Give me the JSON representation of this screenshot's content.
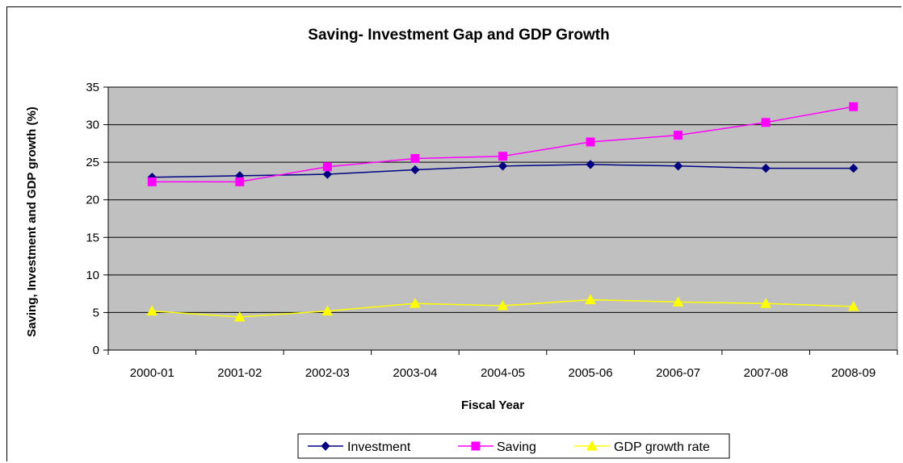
{
  "chart_data": {
    "type": "line",
    "title": "Saving- Investment Gap and GDP Growth",
    "xlabel": "Fiscal Year",
    "ylabel": "Saving, Investment and GDP growth (%)",
    "categories": [
      "2000-01",
      "2001-02",
      "2002-03",
      "2003-04",
      "2004-05",
      "2005-06",
      "2006-07",
      "2007-08",
      "2008-09"
    ],
    "ylim": [
      0,
      35
    ],
    "yticks": [
      0,
      5,
      10,
      15,
      20,
      25,
      30,
      35
    ],
    "grid": true,
    "legend_position": "bottom",
    "plot_background": "#c0c0c0",
    "series": [
      {
        "name": "Investment",
        "color": "#000080",
        "marker": "diamond",
        "values": [
          23.0,
          23.2,
          23.4,
          24.0,
          24.5,
          24.7,
          24.5,
          24.2,
          24.2
        ]
      },
      {
        "name": "Saving",
        "color": "#ff00ff",
        "marker": "square",
        "values": [
          22.4,
          22.4,
          24.4,
          25.5,
          25.8,
          27.7,
          28.6,
          30.3,
          32.4
        ]
      },
      {
        "name": "GDP growth rate",
        "color": "#ffff00",
        "marker": "triangle",
        "values": [
          5.2,
          4.4,
          5.2,
          6.2,
          5.9,
          6.7,
          6.4,
          6.2,
          5.8
        ]
      }
    ]
  }
}
